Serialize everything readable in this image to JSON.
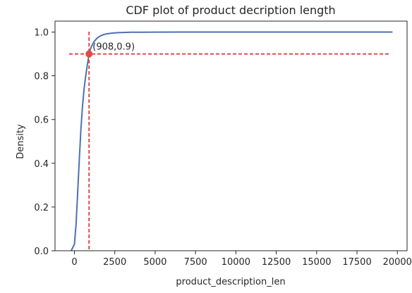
{
  "chart_data": {
    "type": "line",
    "title": "CDF plot of product decription length",
    "xlabel": "product_description_len",
    "ylabel": "Density",
    "xlim": [
      -1200,
      20600
    ],
    "ylim": [
      0,
      1.05
    ],
    "x_ticks": [
      0,
      2500,
      5000,
      7500,
      10000,
      12500,
      15000,
      17500,
      20000
    ],
    "x_tick_labels": [
      "0",
      "2500",
      "5000",
      "7500",
      "10000",
      "12500",
      "15000",
      "17500",
      "20000"
    ],
    "y_ticks": [
      0,
      0.2,
      0.4,
      0.6,
      0.8,
      1.0
    ],
    "y_tick_labels": [
      "0.0",
      "0.2",
      "0.4",
      "0.6",
      "0.8",
      "1.0"
    ],
    "grid": false,
    "series": [
      {
        "color": "#4c72b0",
        "x": [
          -200,
          0,
          100,
          200,
          300,
          400,
          500,
          600,
          700,
          800,
          908,
          1000,
          1200,
          1400,
          1600,
          1800,
          2000,
          2300,
          2600,
          3000,
          3500,
          4000,
          5000,
          7000,
          10000,
          15000,
          19700
        ],
        "y": [
          0,
          0.03,
          0.12,
          0.26,
          0.41,
          0.55,
          0.66,
          0.74,
          0.8,
          0.85,
          0.9,
          0.925,
          0.955,
          0.972,
          0.982,
          0.988,
          0.992,
          0.995,
          0.997,
          0.998,
          0.999,
          0.9995,
          0.9998,
          1.0,
          1.0,
          1.0,
          1.0
        ]
      }
    ],
    "reference_lines": {
      "color": "#e24a4a",
      "x_value": 908,
      "y_value": 0.9
    },
    "marker": {
      "x": 908,
      "y": 0.9,
      "color": "#e24a4a"
    },
    "annotation": {
      "text": "(908,0.9)",
      "x": 908,
      "y": 0.9
    }
  }
}
